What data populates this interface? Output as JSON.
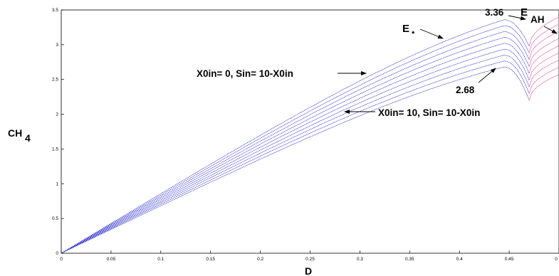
{
  "chart_data": {
    "type": "line",
    "xlabel": "D",
    "ylabel": "CH",
    "ylabel_sub": "4",
    "xlim": [
      0,
      0.5
    ],
    "ylim": [
      0,
      3.5
    ],
    "x_ticks": [
      "0",
      "0.05",
      "0.1",
      "0.15",
      "0.2",
      "0.25",
      "0.3",
      "0.35",
      "0.4",
      "0.45",
      "0"
    ],
    "y_ticks": [
      "0",
      "0.5",
      "1",
      "1.5",
      "2",
      "2.5",
      "3",
      "3.5"
    ],
    "grid": false,
    "series_colors": {
      "E_star_branch": "#2222cc",
      "E_AH_branch": "#dd2277"
    },
    "series_count": 9,
    "curves": {
      "peak_top": 3.36,
      "peak_bottom": 2.68,
      "peak_x": 0.445,
      "branch_x_end": 0.47
    },
    "annotations": {
      "peak_top_label": "3.36",
      "peak_bottom_label": "2.68",
      "e_star_label": "E",
      "e_star_mark": "*",
      "e_ah_label": "E",
      "e_ah_sub": "AH",
      "x0in_zero_label": "X0in= 0, Sin= 10-X0in",
      "x0in_ten_label": "X0in= 10, Sin= 10-X0in"
    }
  }
}
